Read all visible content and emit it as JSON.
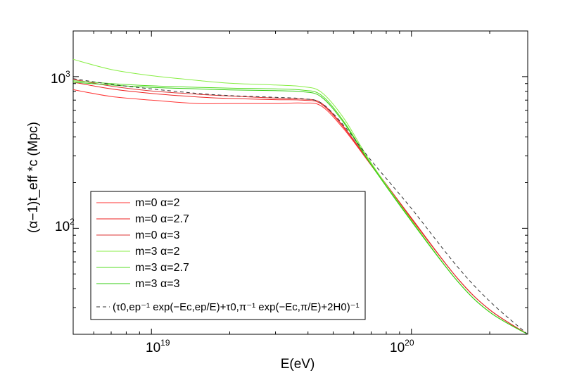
{
  "chart_data": {
    "type": "line",
    "xlabel": "E(eV)",
    "ylabel": "(α−1)t_eff *c (Mpc)",
    "xscale": "log",
    "yscale": "log",
    "xlim": [
      5e+18,
      2.8e+20
    ],
    "ylim": [
      20,
      2000
    ],
    "grid": false,
    "legend_position": "lower-left",
    "x_ticks": [
      {
        "value": 1e+19,
        "base": "10",
        "exp": "19"
      },
      {
        "value": 1e+20,
        "base": "10",
        "exp": "20"
      }
    ],
    "y_ticks": [
      {
        "value": 100,
        "base": "10",
        "exp": "2"
      },
      {
        "value": 1000,
        "base": "10",
        "exp": "3"
      }
    ],
    "series": [
      {
        "name": "m=0 α=2",
        "color": "#ff3333",
        "dash": "solid",
        "x": [
          5e+18,
          7e+18,
          1e+19,
          1.5e+19,
          2e+19,
          3e+19,
          3.8e+19,
          4.5e+19,
          5.5e+19,
          7e+19,
          1e+20,
          1.5e+20,
          2e+20,
          2.8e+20
        ],
        "y": [
          820,
          740,
          700,
          665,
          665,
          665,
          670,
          640,
          450,
          260,
          115,
          47,
          29,
          20
        ]
      },
      {
        "name": "m=0 α=2.7",
        "color": "#ee2222",
        "dash": "solid",
        "x": [
          5e+18,
          7e+18,
          1e+19,
          1.5e+19,
          2e+19,
          3e+19,
          3.8e+19,
          4.5e+19,
          5.5e+19,
          7e+19,
          1e+20,
          1.5e+20,
          2e+20,
          2.8e+20
        ],
        "y": [
          920,
          830,
          775,
          735,
          718,
          705,
          700,
          660,
          460,
          262,
          116,
          47,
          29,
          20
        ]
      },
      {
        "name": "m=0 α=3",
        "color": "#dd3333",
        "dash": "solid",
        "x": [
          5e+18,
          7e+18,
          1e+19,
          1.5e+19,
          2e+19,
          3e+19,
          3.8e+19,
          4.5e+19,
          5.5e+19,
          7e+19,
          1e+20,
          1.5e+20,
          2e+20,
          2.8e+20
        ],
        "y": [
          960,
          865,
          805,
          765,
          745,
          722,
          712,
          670,
          465,
          265,
          117,
          47,
          29,
          20
        ]
      },
      {
        "name": "m=3 α=2",
        "color": "#88ee44",
        "dash": "solid",
        "x": [
          5e+18,
          7e+18,
          1e+19,
          1.5e+19,
          2e+19,
          3e+19,
          3.8e+19,
          4.5e+19,
          5.5e+19,
          7e+19,
          1e+20,
          1.5e+20,
          2e+20,
          2.8e+20
        ],
        "y": [
          1300,
          1115,
          1015,
          945,
          905,
          880,
          860,
          790,
          530,
          270,
          113,
          45,
          28,
          20
        ]
      },
      {
        "name": "m=3 α=2.7",
        "color": "#55dd22",
        "dash": "solid",
        "x": [
          5e+18,
          7e+18,
          1e+19,
          1.5e+19,
          2e+19,
          3e+19,
          3.8e+19,
          4.5e+19,
          5.5e+19,
          7e+19,
          1e+20,
          1.5e+20,
          2e+20,
          2.8e+20
        ],
        "y": [
          940,
          900,
          870,
          850,
          840,
          830,
          815,
          755,
          505,
          265,
          112,
          45,
          28,
          20
        ]
      },
      {
        "name": "m=3 α=3",
        "color": "#33cc11",
        "dash": "solid",
        "x": [
          5e+18,
          7e+18,
          1e+19,
          1.5e+19,
          2e+19,
          3e+19,
          3.8e+19,
          4.5e+19,
          5.5e+19,
          7e+19,
          1e+20,
          1.5e+20,
          2e+20,
          2.8e+20
        ],
        "y": [
          920,
          880,
          850,
          830,
          818,
          808,
          795,
          735,
          495,
          262,
          111,
          45,
          28,
          20
        ]
      },
      {
        "name": "(τ0,ep⁻¹ exp(−Ec,ep/E)+τ0,π⁻¹ exp(−Ec,π/E)+2H0)⁻¹",
        "color": "#333333",
        "dash": "dashed",
        "x": [
          5e+18,
          7e+18,
          1e+19,
          1.5e+19,
          2e+19,
          3e+19,
          3.8e+19,
          4.5e+19,
          5.5e+19,
          7e+19,
          1e+20,
          1.5e+20,
          2e+20,
          2.8e+20
        ],
        "y": [
          970,
          890,
          830,
          775,
          750,
          730,
          715,
          670,
          475,
          280,
          135,
          56,
          33,
          20
        ]
      }
    ]
  }
}
